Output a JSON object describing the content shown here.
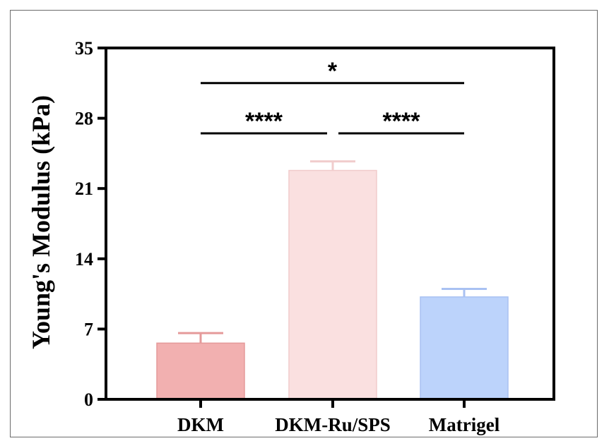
{
  "chart_data": {
    "type": "bar",
    "title": "",
    "ylabel": "Young's Modulus (kPa)",
    "xlabel": "",
    "ylim": [
      0,
      35
    ],
    "yticks": [
      "0",
      "7",
      "14",
      "21",
      "28",
      "35"
    ],
    "categories": [
      "DKM",
      "DKM-Ru/SPS",
      "Matrigel"
    ],
    "values": [
      5.6,
      22.8,
      10.2
    ],
    "errors": [
      1.0,
      0.9,
      0.8
    ],
    "colors": [
      "#f2b0b0",
      "#fae0e0",
      "#bcd3fb"
    ],
    "edge_colors": [
      "#e59a9a",
      "#f1cccc",
      "#a9c1f2"
    ],
    "grid": false,
    "significance": [
      {
        "from": 0,
        "to": 2,
        "label": "*",
        "y": 31.5
      },
      {
        "from": 0,
        "to": 1,
        "label": "****",
        "y": 26.5
      },
      {
        "from": 1,
        "to": 2,
        "label": "****",
        "y": 26.5
      }
    ]
  }
}
